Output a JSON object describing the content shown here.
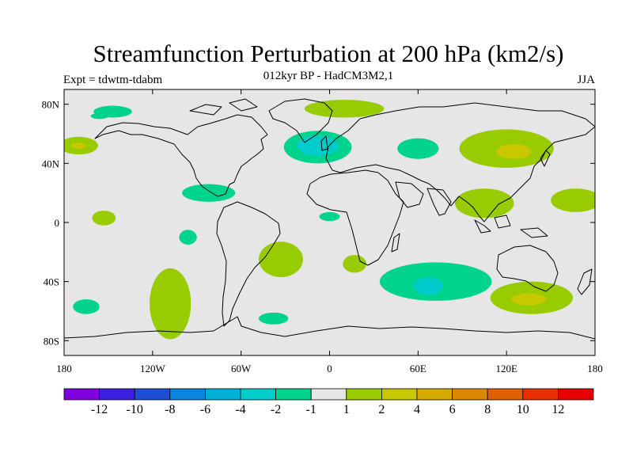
{
  "title": "Streamfunction Perturbation at 200 hPa (km2/s)",
  "subtitle": "012kyr BP - HadCM3M2,1",
  "experiment": "Expt = tdwtm-tdabm",
  "season": "JJA",
  "map": {
    "projection": "cylindrical-equidistant",
    "lon_range": [
      -180,
      180
    ],
    "lat_range": [
      -90,
      90
    ],
    "background_color": "#e6e6e6",
    "lat_ticks": [
      {
        "value": 80,
        "label": "80N"
      },
      {
        "value": 40,
        "label": "40N"
      },
      {
        "value": 0,
        "label": "0"
      },
      {
        "value": -40,
        "label": "40S"
      },
      {
        "value": -80,
        "label": "80S"
      }
    ],
    "lon_ticks": [
      {
        "value": -180,
        "label": "180"
      },
      {
        "value": -120,
        "label": "120W"
      },
      {
        "value": -60,
        "label": "60W"
      },
      {
        "value": 0,
        "label": "0"
      },
      {
        "value": 60,
        "label": "60E"
      },
      {
        "value": 120,
        "label": "120E"
      },
      {
        "value": 180,
        "label": "180"
      }
    ],
    "anomaly_regions": [
      {
        "name": "n-atlantic-low",
        "level": "-4 to -2",
        "color": "#00cccc",
        "lon": -8,
        "lat": 52,
        "lon_radius": 14,
        "lat_radius": 7
      },
      {
        "name": "n-atlantic-low-outer",
        "level": "-2 to -1",
        "color": "#00d38c",
        "lon": -8,
        "lat": 51,
        "lon_radius": 23,
        "lat_radius": 11
      },
      {
        "name": "s-indian-low",
        "level": "-4 to -2",
        "color": "#00cccc",
        "lon": 67,
        "lat": -43,
        "lon_radius": 10,
        "lat_radius": 6
      },
      {
        "name": "s-indian-low-outer",
        "level": "-2 to -1",
        "color": "#00d38c",
        "lon": 72,
        "lat": -40,
        "lon_radius": 38,
        "lat_radius": 13
      },
      {
        "name": "caribbean-low",
        "level": "-2 to -1",
        "color": "#00d38c",
        "lon": -82,
        "lat": 20,
        "lon_radius": 18,
        "lat_radius": 6
      },
      {
        "name": "east-asia-high",
        "level": "2 to 4",
        "color": "#c8c800",
        "lon": 125,
        "lat": 48,
        "lon_radius": 12,
        "lat_radius": 5
      },
      {
        "name": "east-asia-high-outer",
        "level": "1 to 2",
        "color": "#99cc00",
        "lon": 120,
        "lat": 50,
        "lon_radius": 32,
        "lat_radius": 13
      },
      {
        "name": "s-pacific-high",
        "level": "2 to 4",
        "color": "#c8c800",
        "lon": 135,
        "lat": -52,
        "lon_radius": 12,
        "lat_radius": 4
      },
      {
        "name": "s-pacific-high-outer",
        "level": "1 to 2",
        "color": "#99cc00",
        "lon": 137,
        "lat": -51,
        "lon_radius": 28,
        "lat_radius": 11
      },
      {
        "name": "s-atlantic-high",
        "level": "1 to 2",
        "color": "#99cc00",
        "lon": -33,
        "lat": -25,
        "lon_radius": 15,
        "lat_radius": 12
      },
      {
        "name": "s-africa-high",
        "level": "1 to 2",
        "color": "#99cc00",
        "lon": 17,
        "lat": -28,
        "lon_radius": 8,
        "lat_radius": 6
      },
      {
        "name": "se-pacific-high",
        "level": "1 to 2",
        "color": "#99cc00",
        "lon": -108,
        "lat": -55,
        "lon_radius": 14,
        "lat_radius": 24
      },
      {
        "name": "n-pacific-high",
        "level": "1 to 2",
        "color": "#99cc00",
        "lon": -170,
        "lat": 52,
        "lon_radius": 13,
        "lat_radius": 6
      },
      {
        "name": "n-pacific-high-core",
        "level": "2 to 4",
        "color": "#c8c800",
        "lon": -170,
        "lat": 52,
        "lon_radius": 5,
        "lat_radius": 2
      },
      {
        "name": "asia-monsoon-high",
        "level": "1 to 2",
        "color": "#99cc00",
        "lon": 105,
        "lat": 13,
        "lon_radius": 20,
        "lat_radius": 10
      },
      {
        "name": "w-pacific-high",
        "level": "1 to 2",
        "color": "#99cc00",
        "lon": 167,
        "lat": 15,
        "lon_radius": 17,
        "lat_radius": 8
      },
      {
        "name": "arctic-high",
        "level": "1 to 2",
        "color": "#99cc00",
        "lon": 10,
        "lat": 77,
        "lon_radius": 27,
        "lat_radius": 6
      },
      {
        "name": "nw-pacific-low",
        "level": "-2 to -1",
        "color": "#00d38c",
        "lon": -147,
        "lat": 75,
        "lon_radius": 13,
        "lat_radius": 4
      },
      {
        "name": "barents-low",
        "level": "-2 to -1",
        "color": "#00d38c",
        "lon": 60,
        "lat": 50,
        "lon_radius": 14,
        "lat_radius": 7
      },
      {
        "name": "e-pacific-low",
        "level": "-2 to -1",
        "color": "#00d38c",
        "lon": -96,
        "lat": -10,
        "lon_radius": 6,
        "lat_radius": 5
      },
      {
        "name": "tropical-pacific-high",
        "level": "1 to 2",
        "color": "#99cc00",
        "lon": -153,
        "lat": 3,
        "lon_radius": 8,
        "lat_radius": 5
      },
      {
        "name": "southern-ocean-low-a",
        "level": "-2 to -1",
        "color": "#00d38c",
        "lon": -165,
        "lat": -57,
        "lon_radius": 9,
        "lat_radius": 5
      },
      {
        "name": "southern-ocean-low-b",
        "level": "-2 to -1",
        "color": "#00d38c",
        "lon": -38,
        "lat": -65,
        "lon_radius": 10,
        "lat_radius": 4
      },
      {
        "name": "e-atlantic-low",
        "level": "-2 to -1",
        "color": "#00d38c",
        "lon": 0,
        "lat": 4,
        "lon_radius": 7,
        "lat_radius": 3
      },
      {
        "name": "arctic-low-west",
        "level": "-2 to -1",
        "color": "#00d38c",
        "lon": -156,
        "lat": 72,
        "lon_radius": 6,
        "lat_radius": 2
      }
    ]
  },
  "colorbar": {
    "colors": [
      "#8000e0",
      "#3a1fdd",
      "#1d4fd6",
      "#0a85dd",
      "#00b0d6",
      "#00cccc",
      "#00d38c",
      "#e6e6e6",
      "#99cc00",
      "#c8c800",
      "#d6aa00",
      "#d98800",
      "#e06000",
      "#e63000",
      "#e60000"
    ],
    "labels": [
      "-12",
      "-10",
      "-8",
      "-6",
      "-4",
      "-2",
      "-1",
      "1",
      "2",
      "4",
      "6",
      "8",
      "10",
      "12"
    ]
  }
}
